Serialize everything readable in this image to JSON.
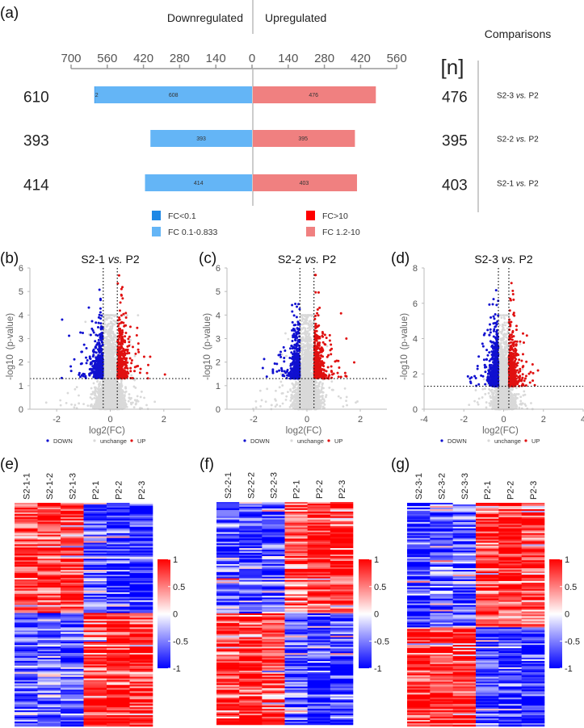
{
  "chart_data": [
    {
      "panel": "(a)",
      "type": "bar",
      "orientation": "horizontal-diverging",
      "header_left": "Downregulated",
      "header_right": "Upregulated",
      "comparisons_title": "Comparisons",
      "n_label": "[n]",
      "xticks": [
        "700",
        "560",
        "420",
        "280",
        "140",
        "0",
        "140",
        "280",
        "420",
        "560"
      ],
      "xlim_down": 700,
      "xlim_up": 560,
      "categories": [
        "S2-3 vs. P2",
        "S2-2 vs. P2",
        "S2-1 vs. P2"
      ],
      "category_parts": [
        [
          "S2-3 ",
          "vs.",
          " P2"
        ],
        [
          "S2-2 ",
          "vs.",
          " P2"
        ],
        [
          "S2-1 ",
          "vs.",
          " P2"
        ]
      ],
      "down_totals": [
        "610",
        "393",
        "414"
      ],
      "up_totals": [
        "476",
        "395",
        "403"
      ],
      "series": [
        {
          "name": "FC<0.1",
          "side": "down",
          "values": [
            2,
            0,
            0
          ],
          "labels": [
            "2",
            "",
            ""
          ],
          "color": "#1e88e5"
        },
        {
          "name": "FC 0.1-0.833",
          "side": "down",
          "values": [
            608,
            393,
            414
          ],
          "labels": [
            "608",
            "393",
            "414"
          ],
          "color": "#64b5f6"
        },
        {
          "name": "FC>10",
          "side": "up",
          "values": [
            0,
            0,
            0
          ],
          "labels": [
            "",
            "",
            ""
          ],
          "color": "#ff0000"
        },
        {
          "name": "FC 1.2-10",
          "side": "up",
          "values": [
            476,
            395,
            403
          ],
          "labels": [
            "476",
            "395",
            "403"
          ],
          "color": "#f08080"
        }
      ],
      "legend": [
        "FC<0.1",
        "FC>10",
        "FC 0.1-0.833",
        "FC 1.2-10"
      ]
    },
    {
      "panel": "(b)",
      "type": "scatter",
      "title_parts": [
        "S2-1 ",
        "vs.",
        " P2"
      ],
      "xlabel": "log2(FC)",
      "ylabel": "-log10 (p-value)",
      "xlim": [
        -3,
        3
      ],
      "ylim": [
        0,
        6
      ],
      "xticks": [
        "-2",
        "0",
        "2"
      ],
      "xtick_values": [
        -2,
        0,
        2
      ],
      "yticks": [
        "0",
        "1",
        "2",
        "3",
        "4",
        "5",
        "6"
      ],
      "ytick_values": [
        0,
        1,
        2,
        3,
        4,
        5,
        6
      ],
      "thresholds": {
        "log2fc": [
          -0.263,
          0.263
        ],
        "neg_log10_p": 1.301
      },
      "counts": {
        "DOWN": 414,
        "UP": 403
      },
      "legend": [
        "DOWN",
        "unchange",
        "UP"
      ],
      "colors": {
        "DOWN": "#1010d0",
        "unchange": "#d9d9d9",
        "UP": "#e01010"
      }
    },
    {
      "panel": "(c)",
      "type": "scatter",
      "title_parts": [
        "S2-2 ",
        "vs.",
        " P2"
      ],
      "xlabel": "log2(FC)",
      "ylabel": "-log10 (p-value)",
      "xlim": [
        -3,
        3
      ],
      "ylim": [
        0,
        6
      ],
      "xticks": [
        "-2",
        "0",
        "2"
      ],
      "xtick_values": [
        -2,
        0,
        2
      ],
      "yticks": [
        "0",
        "1",
        "2",
        "3",
        "4",
        "5",
        "6"
      ],
      "ytick_values": [
        0,
        1,
        2,
        3,
        4,
        5,
        6
      ],
      "thresholds": {
        "log2fc": [
          -0.263,
          0.263
        ],
        "neg_log10_p": 1.301
      },
      "counts": {
        "DOWN": 393,
        "UP": 395
      },
      "legend": [
        "DOWN",
        "unchange",
        "UP"
      ],
      "colors": {
        "DOWN": "#1010d0",
        "unchange": "#d9d9d9",
        "UP": "#e01010"
      }
    },
    {
      "panel": "(d)",
      "type": "scatter",
      "title_parts": [
        "S2-3 ",
        "vs.",
        " P2"
      ],
      "xlabel": "log2(FC)",
      "ylabel": "-log10 (p-value)",
      "xlim": [
        -4,
        4
      ],
      "ylim": [
        0,
        8
      ],
      "xticks": [
        "-4",
        "-2",
        "0",
        "2",
        "4"
      ],
      "xtick_values": [
        -4,
        -2,
        0,
        2,
        4
      ],
      "yticks": [
        "0",
        "2",
        "4",
        "6",
        "8"
      ],
      "ytick_values": [
        0,
        2,
        4,
        6,
        8
      ],
      "thresholds": {
        "log2fc": [
          -0.263,
          0.263
        ],
        "neg_log10_p": 1.301
      },
      "counts": {
        "DOWN": 610,
        "UP": 476
      },
      "legend": [
        "DOWN",
        "unchange",
        "UP"
      ],
      "colors": {
        "DOWN": "#1010d0",
        "unchange": "#d9d9d9",
        "UP": "#e01010"
      }
    },
    {
      "panel": "(e)",
      "type": "heatmap",
      "columns": [
        "S2-1-1",
        "S2-1-2",
        "S2-1-3",
        "P2-1",
        "P2-2",
        "P2-3"
      ],
      "clusters": [
        {
          "share": 0.49,
          "column_levels": [
            0.7,
            0.75,
            0.8,
            -0.6,
            -0.8,
            -0.85
          ]
        },
        {
          "share": 0.51,
          "column_levels": [
            -0.6,
            -0.6,
            -0.75,
            0.7,
            0.9,
            0.85
          ]
        }
      ],
      "colorbar": {
        "ticks": [
          "1",
          "0.5",
          "0",
          "-0.5",
          "-1"
        ],
        "range": [
          -1,
          1
        ],
        "colors": [
          "#0000ff",
          "#ffffff",
          "#ff0000"
        ]
      }
    },
    {
      "panel": "(f)",
      "type": "heatmap",
      "columns": [
        "S2-2-1",
        "S2-2-2",
        "S2-2-3",
        "P2-1",
        "P2-2",
        "P2-3"
      ],
      "clusters": [
        {
          "share": 0.5,
          "column_levels": [
            -0.7,
            -0.75,
            -0.7,
            0.6,
            0.9,
            0.8
          ]
        },
        {
          "share": 0.5,
          "column_levels": [
            0.75,
            0.85,
            0.7,
            -0.55,
            -0.85,
            -0.8
          ]
        }
      ],
      "colorbar": {
        "ticks": [
          "1",
          "0.5",
          "0",
          "-0.5",
          "-1"
        ],
        "range": [
          -1,
          1
        ],
        "colors": [
          "#0000ff",
          "#ffffff",
          "#ff0000"
        ]
      }
    },
    {
      "panel": "(g)",
      "type": "heatmap",
      "columns": [
        "S2-3-1",
        "S2-3-2",
        "S2-3-3",
        "P2-1",
        "P2-2",
        "P2-3"
      ],
      "clusters": [
        {
          "share": 0.56,
          "column_levels": [
            -0.85,
            -0.7,
            -0.6,
            0.75,
            0.85,
            0.7
          ]
        },
        {
          "share": 0.44,
          "column_levels": [
            0.8,
            0.75,
            0.75,
            -0.6,
            -0.8,
            -0.75
          ]
        }
      ],
      "colorbar": {
        "ticks": [
          "1",
          "0.5",
          "0",
          "-0.5",
          "-1"
        ],
        "range": [
          -1,
          1
        ],
        "colors": [
          "#0000ff",
          "#ffffff",
          "#ff0000"
        ]
      }
    }
  ]
}
